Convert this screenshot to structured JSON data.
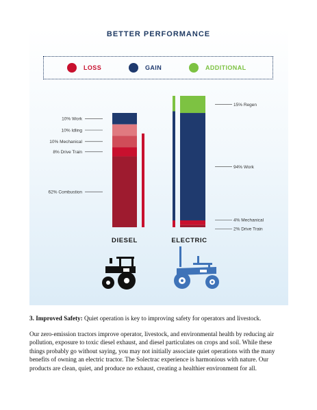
{
  "title": "BETTER PERFORMANCE",
  "legend": [
    {
      "label": "LOSS",
      "color": "#c8102e"
    },
    {
      "label": "GAIN",
      "color": "#1f3a6e"
    },
    {
      "label": "ADDITIONAL",
      "color": "#7dc242"
    }
  ],
  "chart_data": {
    "type": "bar",
    "categories": [
      "DIESEL",
      "ELECTRIC"
    ],
    "unit": "%",
    "series": [
      {
        "category": "DIESEL",
        "segments": [
          {
            "label": "10% Work",
            "value": 10,
            "kind": "gain",
            "color": "#1f3a6e"
          },
          {
            "label": "10% Idling",
            "value": 10,
            "kind": "loss",
            "color": "#e07a80"
          },
          {
            "label": "10% Mechanical",
            "value": 10,
            "kind": "loss",
            "color": "#d04d59"
          },
          {
            "label": "8% Drive Train",
            "value": 8,
            "kind": "loss",
            "color": "#c8102e"
          },
          {
            "label": "62% Combustion",
            "value": 62,
            "kind": "loss",
            "color": "#9e1b2f"
          }
        ]
      },
      {
        "category": "ELECTRIC",
        "segments": [
          {
            "label": "15% Regen",
            "value": 15,
            "kind": "additional",
            "color": "#7dc242"
          },
          {
            "label": "94% Work",
            "value": 94,
            "kind": "gain",
            "color": "#1f3a6e"
          },
          {
            "label": "4% Mechanical",
            "value": 4,
            "kind": "loss",
            "color": "#c8102e"
          },
          {
            "label": "2% Drive Train",
            "value": 2,
            "kind": "loss",
            "color": "#9e1b2f"
          }
        ]
      }
    ]
  },
  "icons": {
    "diesel": "diesel-tractor-icon",
    "electric": "electric-tractor-icon",
    "diesel_color": "#111111",
    "electric_color": "#3f73b8"
  },
  "body": {
    "safety_heading": "3. Improved Safety:",
    "safety_text": " Quiet operation is key to improving safety for operators and livestock.",
    "paragraph": "Our zero-emission tractors improve operator, livestock, and environmental health by reducing air pollution, exposure to toxic diesel exhaust, and diesel particulates on crops and soil. While these things probably go without saying, you may not initially associate quiet operations with the many benefits of owning an electric tractor. The Solectrac experience is harmonious with nature. Our products are clean, quiet, and produce no exhaust, creating a healthier environment for all."
  }
}
